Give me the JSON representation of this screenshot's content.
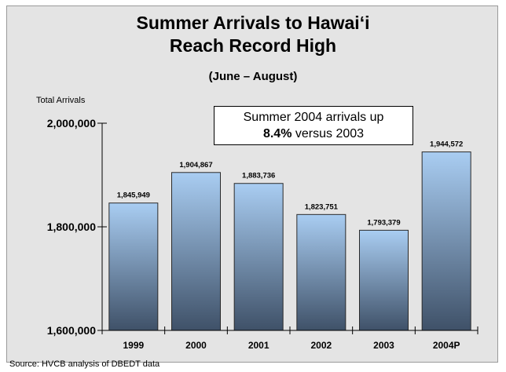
{
  "chart_data": {
    "type": "bar",
    "title": "Summer Arrivals to Hawai‘i",
    "title_line2": "Reach Record High",
    "subtitle": "(June – August)",
    "ylabel": "Total Arrivals",
    "xlabel": "",
    "categories": [
      "1999",
      "2000",
      "2001",
      "2002",
      "2003",
      "2004P"
    ],
    "values": [
      1845949,
      1904867,
      1883736,
      1823751,
      1793379,
      1944572
    ],
    "value_labels": [
      "1,845,949",
      "1,904,867",
      "1,883,736",
      "1,823,751",
      "1,793,379",
      "1,944,572"
    ],
    "ylim": [
      1600000,
      2000000
    ],
    "yticks": [
      1600000,
      1800000,
      2000000
    ],
    "ytick_labels": [
      "1,600,000",
      "1,800,000",
      "2,000,000"
    ],
    "grid": false,
    "legend": "none",
    "bar_color_top": "#a9cdf2",
    "bar_color_bottom": "#3f5168"
  },
  "callout": {
    "line1": "Summer 2004 arrivals up",
    "bold": "8.4%",
    "line2_rest": " versus 2003"
  },
  "source": "Source: HVCB analysis of DBEDT data",
  "colors": {
    "background": "#e4e4e4",
    "axis": "#000000"
  }
}
